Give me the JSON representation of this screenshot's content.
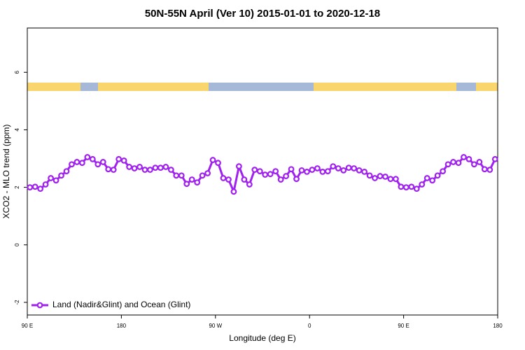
{
  "chart_data": {
    "type": "line",
    "title": "50N-55N April (Ver 10)   2015-01-01 to 2020-12-18",
    "xlabel": "Longitude (deg E)",
    "ylabel": "XCO2 - MLO trend (ppm)",
    "xlim": [
      90,
      540
    ],
    "ylim": [
      -2.44,
      7.54
    ],
    "xticks": [
      {
        "value": 90,
        "label": "90 E"
      },
      180,
      {
        "value": 270,
        "label": "90 W"
      },
      {
        "value": 360,
        "label": "0"
      },
      {
        "value": 450,
        "label": "90 E"
      },
      {
        "value": 540,
        "label": "180"
      }
    ],
    "yticks": [
      -2,
      0,
      2,
      4,
      6
    ],
    "legend": "bottom-left",
    "x": [
      92.5,
      97.5,
      102.5,
      107.5,
      112.5,
      117.5,
      122.5,
      127.5,
      132.5,
      137.5,
      142.5,
      147.5,
      152.5,
      157.5,
      162.5,
      167.5,
      172.5,
      177.5,
      182.5,
      187.5,
      192.5,
      197.5,
      202.5,
      207.5,
      212.5,
      217.5,
      222.5,
      227.5,
      232.5,
      237.5,
      242.5,
      247.5,
      252.5,
      257.5,
      262.5,
      267.5,
      272.5,
      277.5,
      282.5,
      287.5,
      292.5,
      297.5,
      302.5,
      307.5,
      312.5,
      317.5,
      322.5,
      327.5,
      332.5,
      337.5,
      342.5,
      347.5,
      352.5,
      357.5,
      362.5,
      367.5,
      372.5,
      377.5,
      382.5,
      387.5,
      392.5,
      397.5,
      402.5,
      407.5,
      412.5,
      417.5,
      422.5,
      427.5,
      432.5,
      437.5,
      442.5,
      447.5,
      452.5,
      457.5,
      462.5,
      467.5,
      472.5,
      477.5,
      482.5,
      487.5,
      492.5,
      497.5,
      502.5,
      507.5,
      512.5,
      517.5,
      522.5,
      527.5,
      532.5,
      537.5
    ],
    "series": [
      {
        "name": "Land (Nadir&Glint) and Ocean (Glint)",
        "color": "#a020f0",
        "values": [
          2.0,
          2.02,
          1.95,
          2.1,
          2.32,
          2.24,
          2.41,
          2.56,
          2.8,
          2.88,
          2.85,
          3.05,
          2.98,
          2.8,
          2.88,
          2.63,
          2.61,
          2.98,
          2.93,
          2.71,
          2.66,
          2.71,
          2.61,
          2.61,
          2.68,
          2.68,
          2.71,
          2.61,
          2.41,
          2.41,
          2.12,
          2.27,
          2.17,
          2.41,
          2.49,
          2.95,
          2.85,
          2.32,
          2.27,
          1.85,
          2.73,
          2.27,
          2.1,
          2.61,
          2.56,
          2.44,
          2.46,
          2.56,
          2.27,
          2.39,
          2.63,
          2.29,
          2.59,
          2.54,
          2.61,
          2.66,
          2.54,
          2.56,
          2.73,
          2.66,
          2.59,
          2.68,
          2.66,
          2.59,
          2.54,
          2.41,
          2.32,
          2.39,
          2.37,
          2.29,
          2.29,
          2.02,
          2.0,
          2.02,
          1.95,
          2.1,
          2.32,
          2.24,
          2.41,
          2.56,
          2.8,
          2.88,
          2.85,
          3.05,
          2.98,
          2.8,
          2.88,
          2.63,
          2.61,
          2.98
        ]
      }
    ]
  }
}
